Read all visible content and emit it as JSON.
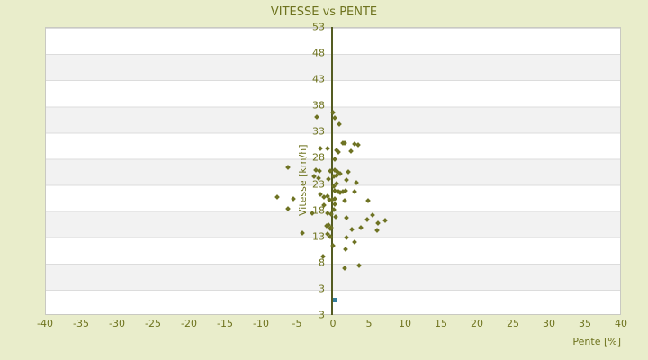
{
  "title": "VITESSE vs PENTE",
  "colors": {
    "background": "#e9edcb",
    "text": "#6e731e",
    "stripe_light": "#ffffff",
    "stripe_dark": "#f2f2f2",
    "gridline": "#dcdcdc",
    "zero_axis_line": "#545c22",
    "points": "#6e7323",
    "highlight_point": "#357f9d"
  },
  "chart_data": {
    "type": "scatter",
    "title": "VITESSE vs PENTE",
    "xlabel": "Pente [%]",
    "ylabel": "Vitesse [km/h]",
    "xlim": [
      -40,
      40
    ],
    "ylim": [
      -2,
      53
    ],
    "x_ticks": [
      -40,
      -35,
      -30,
      -25,
      -20,
      -15,
      -10,
      -5,
      0,
      5,
      10,
      15,
      20,
      25,
      30,
      35,
      40
    ],
    "y_tick_labels": [
      "53",
      "48",
      "43",
      "38",
      "33",
      "28",
      "23",
      "18",
      "13",
      "8",
      "3",
      "3"
    ],
    "grid": "horizontal stripes with gridlines every 5 units, vertical line at x=0",
    "legend": "none",
    "series": [
      {
        "name": "vitesse-vs-pente-points",
        "color": "#6e7323",
        "marker": "diamond",
        "points": [
          [
            -2.2,
            35.8
          ],
          [
            0.3,
            35.6
          ],
          [
            0.9,
            34.5
          ],
          [
            0.0,
            36.7
          ],
          [
            -1.8,
            29.8
          ],
          [
            -0.8,
            29.8
          ],
          [
            0.5,
            29.5
          ],
          [
            0.8,
            29.1
          ],
          [
            2.5,
            29.3
          ],
          [
            1.4,
            30.8
          ],
          [
            1.6,
            30.8
          ],
          [
            3.0,
            30.6
          ],
          [
            3.5,
            30.4
          ],
          [
            0.2,
            27.7
          ],
          [
            -2.4,
            25.6
          ],
          [
            -1.9,
            25.5
          ],
          [
            -0.4,
            25.5
          ],
          [
            0.3,
            25.6
          ],
          [
            0.6,
            25.3
          ],
          [
            2.1,
            25.3
          ],
          [
            1.0,
            24.9
          ],
          [
            0.5,
            24.7
          ],
          [
            -2.6,
            24.4
          ],
          [
            -2.0,
            24.2
          ],
          [
            -0.6,
            24.0
          ],
          [
            0.1,
            24.4
          ],
          [
            1.9,
            23.7
          ],
          [
            3.2,
            23.2
          ],
          [
            0.5,
            23.1
          ],
          [
            0.1,
            22.6
          ],
          [
            0.3,
            21.7
          ],
          [
            0.7,
            21.6
          ],
          [
            1.0,
            21.4
          ],
          [
            1.4,
            21.6
          ],
          [
            1.8,
            21.7
          ],
          [
            3.0,
            21.6
          ],
          [
            -1.8,
            21.1
          ],
          [
            -1.3,
            20.5
          ],
          [
            -0.7,
            20.7
          ],
          [
            -0.5,
            20.0
          ],
          [
            -0.1,
            20.0
          ],
          [
            0.3,
            20.2
          ],
          [
            1.6,
            19.9
          ],
          [
            4.9,
            19.8
          ],
          [
            0.3,
            19.2
          ],
          [
            -1.2,
            19.0
          ],
          [
            0.1,
            18.1
          ],
          [
            -2.9,
            17.4
          ],
          [
            -0.7,
            17.4
          ],
          [
            -0.3,
            17.2
          ],
          [
            0.4,
            16.7
          ],
          [
            1.9,
            16.5
          ],
          [
            4.7,
            16.2
          ],
          [
            5.5,
            17.0
          ],
          [
            6.3,
            15.5
          ],
          [
            7.2,
            16.1
          ],
          [
            -0.9,
            15.0
          ],
          [
            -0.6,
            15.2
          ],
          [
            -0.4,
            14.5
          ],
          [
            -0.2,
            14.7
          ],
          [
            2.6,
            14.4
          ],
          [
            3.9,
            14.6
          ],
          [
            6.1,
            14.1
          ],
          [
            -4.2,
            13.6
          ],
          [
            -0.7,
            13.4
          ],
          [
            -0.4,
            12.9
          ],
          [
            1.9,
            12.7
          ],
          [
            3.0,
            11.9
          ],
          [
            0.0,
            11.2
          ],
          [
            1.8,
            10.5
          ],
          [
            -1.4,
            9.1
          ],
          [
            1.6,
            7.0
          ],
          [
            3.6,
            7.5
          ],
          [
            -6.2,
            26.2
          ],
          [
            -7.7,
            20.5
          ],
          [
            -5.5,
            20.1
          ],
          [
            -6.3,
            18.2
          ]
        ]
      },
      {
        "name": "highlight-point",
        "color": "#357f9d",
        "marker": "square",
        "points": [
          [
            0.2,
            0.9
          ]
        ]
      }
    ]
  }
}
